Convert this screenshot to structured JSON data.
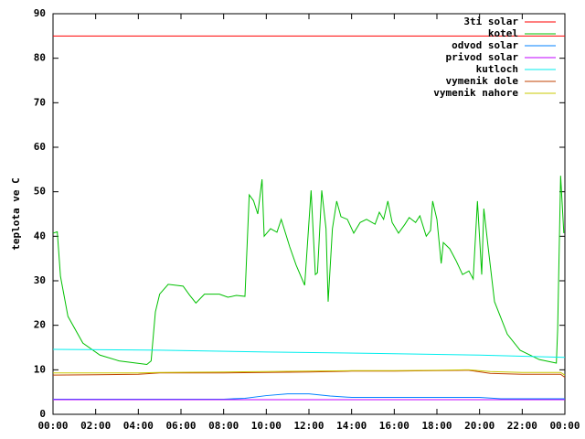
{
  "chart_data": {
    "type": "line",
    "ylabel": "teplota ve C",
    "xlim": [
      0,
      24
    ],
    "xticks": [
      {
        "value": 0,
        "label": "00:00"
      },
      {
        "value": 2,
        "label": "02:00"
      },
      {
        "value": 4,
        "label": "04:00"
      },
      {
        "value": 6,
        "label": "06:00"
      },
      {
        "value": 8,
        "label": "08:00"
      },
      {
        "value": 10,
        "label": "10:00"
      },
      {
        "value": 12,
        "label": "12:00"
      },
      {
        "value": 14,
        "label": "14:00"
      },
      {
        "value": 16,
        "label": "16:00"
      },
      {
        "value": 18,
        "label": "18:00"
      },
      {
        "value": 20,
        "label": "20:00"
      },
      {
        "value": 22,
        "label": "22:00"
      },
      {
        "value": 24,
        "label": "00:00"
      }
    ],
    "ylim": [
      0,
      90
    ],
    "yticks": [
      0,
      10,
      20,
      30,
      40,
      50,
      60,
      70,
      80,
      90
    ],
    "grid": false,
    "legend": "top-right",
    "series": [
      {
        "name": "3ti solar",
        "color": "#ff0000",
        "x": [
          0,
          24
        ],
        "values": [
          85,
          85
        ]
      },
      {
        "name": "kotel",
        "color": "#00c000",
        "x": [
          0,
          0.2,
          0.35,
          0.7,
          1.4,
          2.2,
          3.1,
          3.9,
          4.4,
          4.6,
          4.8,
          5.0,
          5.4,
          6.1,
          6.4,
          6.7,
          7.1,
          7.8,
          8.2,
          8.6,
          9.0,
          9.2,
          9.4,
          9.6,
          9.8,
          9.9,
          10.2,
          10.5,
          10.7,
          11.1,
          11.4,
          11.8,
          12.1,
          12.3,
          12.4,
          12.6,
          12.8,
          12.9,
          13.1,
          13.3,
          13.5,
          13.8,
          14.1,
          14.4,
          14.7,
          15.1,
          15.3,
          15.5,
          15.7,
          15.9,
          16.2,
          16.5,
          16.7,
          17.0,
          17.2,
          17.5,
          17.7,
          17.8,
          18.0,
          18.2,
          18.3,
          18.6,
          18.9,
          19.2,
          19.5,
          19.7,
          19.9,
          20.1,
          20.2,
          20.4,
          20.7,
          21.3,
          21.9,
          22.8,
          23.6,
          23.66,
          23.8,
          23.95
        ],
        "values": [
          40.7,
          41,
          31,
          22,
          16,
          13.3,
          12,
          11.5,
          11.2,
          12,
          23,
          27,
          29.2,
          28.8,
          26.8,
          25,
          27,
          27,
          26.3,
          26.7,
          26.5,
          49.3,
          48,
          45,
          52.8,
          40,
          41.7,
          40.9,
          43.8,
          37.6,
          33.5,
          29,
          50.3,
          31.4,
          31.8,
          50.3,
          41.7,
          25.3,
          41.7,
          47.9,
          44.4,
          43.8,
          40.7,
          43.1,
          43.8,
          42.7,
          45.4,
          43.8,
          47.9,
          43.1,
          40.7,
          42.7,
          44.2,
          43.1,
          44.6,
          40,
          41.3,
          47.9,
          43.8,
          33.9,
          38.6,
          37.2,
          34.5,
          31.4,
          32.2,
          30.4,
          47.9,
          31.4,
          46.2,
          37.6,
          25.3,
          18,
          14.4,
          12.3,
          11.5,
          19,
          53.6,
          40.7
        ]
      },
      {
        "name": "odvod solar",
        "color": "#0080ff",
        "x": [
          0,
          8,
          9,
          10,
          11,
          12,
          13,
          14,
          18,
          20,
          21,
          24
        ],
        "values": [
          3.4,
          3.4,
          3.6,
          4.2,
          4.6,
          4.6,
          4.1,
          3.8,
          3.8,
          3.8,
          3.5,
          3.5
        ]
      },
      {
        "name": "privod solar",
        "color": "#c000ff",
        "x": [
          0,
          24
        ],
        "values": [
          3.3,
          3.3
        ]
      },
      {
        "name": "kutloch",
        "color": "#00eeee",
        "x": [
          0,
          5,
          10,
          15,
          20,
          24
        ],
        "values": [
          14.6,
          14.4,
          14.0,
          13.7,
          13.3,
          12.8
        ]
      },
      {
        "name": "vymenik dole",
        "color": "#c04000",
        "x": [
          0,
          2,
          4,
          5,
          8,
          10,
          12,
          14,
          16,
          18,
          19.5,
          20.5,
          22,
          23.8,
          24
        ],
        "values": [
          8.8,
          8.9,
          9.0,
          9.3,
          9.3,
          9.4,
          9.5,
          9.7,
          9.7,
          9.8,
          9.9,
          9.2,
          9.0,
          9.0,
          8.3
        ]
      },
      {
        "name": "vymenik nahore",
        "color": "#c8c800",
        "x": [
          0,
          2,
          4,
          5,
          8,
          10,
          12,
          14,
          16,
          18,
          19.5,
          20.5,
          22,
          23.8,
          24
        ],
        "values": [
          9.3,
          9.3,
          9.3,
          9.4,
          9.5,
          9.6,
          9.7,
          9.8,
          9.8,
          9.9,
          10.0,
          9.6,
          9.4,
          9.4,
          8.8
        ]
      }
    ]
  }
}
